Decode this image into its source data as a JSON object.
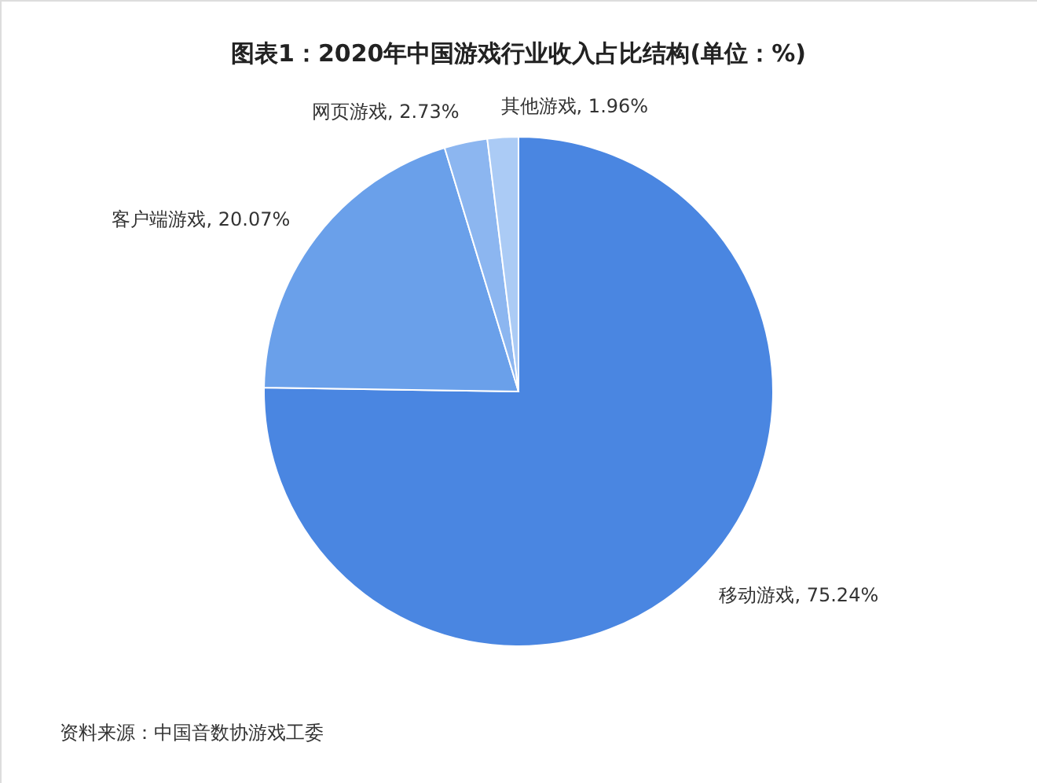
{
  "chart_data": {
    "type": "pie",
    "title": "图表1：2020年中国游戏行业收入占比结构(单位：%)",
    "categories": [
      "移动游戏",
      "客户端游戏",
      "网页游戏",
      "其他游戏"
    ],
    "values": [
      75.24,
      20.07,
      2.73,
      1.96
    ],
    "colors": [
      "#4a86e1",
      "#6aa0ea",
      "#8cb6f0",
      "#abcbf5"
    ],
    "value_labels": [
      "75.24%",
      "20.07%",
      "2.73%",
      "1.96%"
    ],
    "annotations": [
      "资料来源：中国音数协游戏工委"
    ]
  }
}
